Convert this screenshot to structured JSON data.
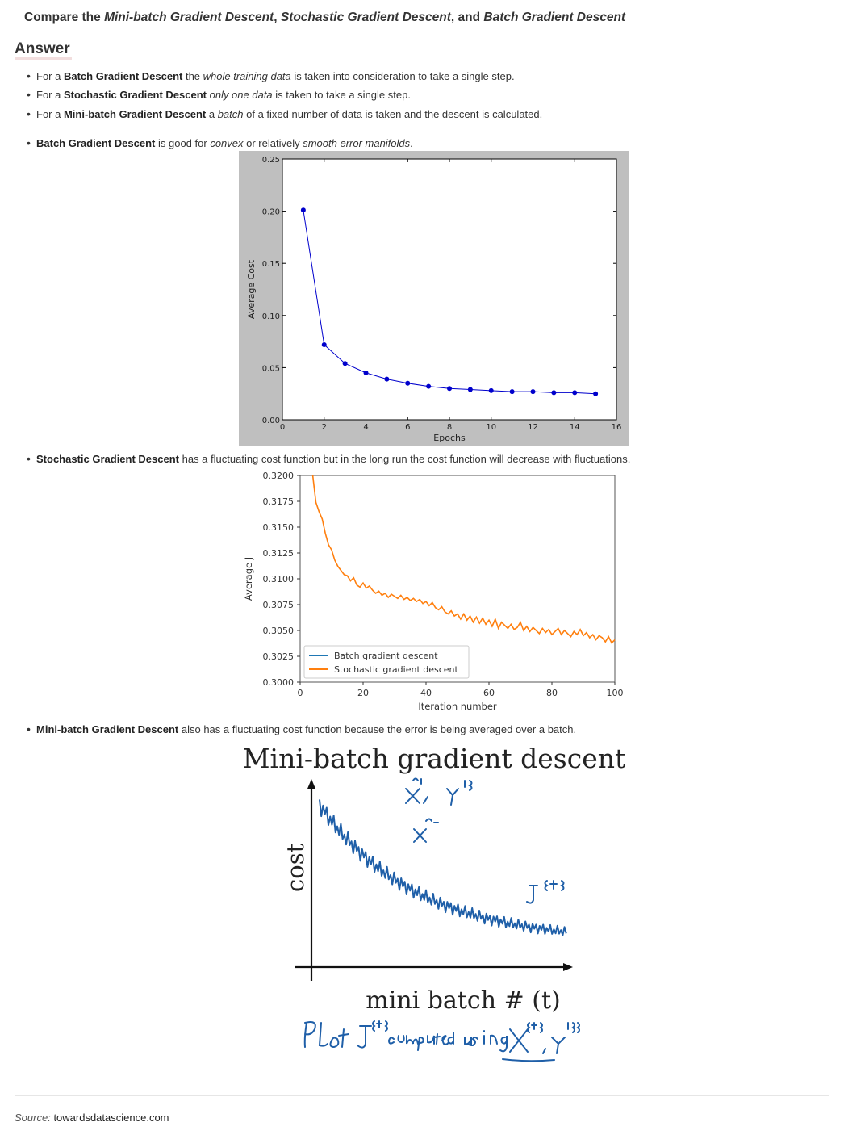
{
  "question": {
    "prefix": "Compare the ",
    "t1": "Mini-batch Gradient Descent",
    "sep1": ", ",
    "t2": "Stochastic Gradient Descent",
    "sep2": ", and ",
    "t3": "Batch Gradient Descent"
  },
  "answer_heading": "Answer",
  "bullets": [
    {
      "a": "For a ",
      "b": "Batch Gradient Descent",
      "c": " the ",
      "d": "whole training data",
      "e": " is taken into consideration to take a single step."
    },
    {
      "a": "For a ",
      "b": "Stochastic Gradient Descent",
      "c": " ",
      "d": "only one data",
      "e": " is taken to take a single step."
    },
    {
      "a": "For a ",
      "b": "Mini-batch Gradient Descent",
      "c": " a ",
      "d": "batch",
      "e": " of a fixed number of data is taken and the descent is calculated."
    }
  ],
  "bullet_batch": {
    "b": "Batch Gradient Descent",
    "c": " is good for ",
    "d": "convex",
    "e": " or relatively ",
    "f": "smooth error manifolds",
    "g": "."
  },
  "bullet_sgd": {
    "b": "Stochastic Gradient Descent",
    "c": " has a fluctuating cost function but in the long run the cost function will decrease with fluctuations."
  },
  "bullet_mb": {
    "b": "Mini-batch Gradient Descent",
    "c": " also has a fluctuating cost function because the error is being averaged over a batch."
  },
  "chart_data": [
    {
      "type": "line",
      "xlabel": "Epochs",
      "ylabel": "Average Cost",
      "xlim": [
        0,
        16
      ],
      "ylim": [
        0,
        0.25
      ],
      "xticks": [
        "0",
        "2",
        "4",
        "6",
        "8",
        "10",
        "12",
        "14",
        "16"
      ],
      "yticks": [
        "0.00",
        "0.05",
        "0.10",
        "0.15",
        "0.20",
        "0.25"
      ],
      "series": [
        {
          "x": [
            1,
            2,
            3,
            4,
            5,
            6,
            7,
            8,
            9,
            10,
            11,
            12,
            13,
            14,
            15
          ],
          "y": [
            0.201,
            0.072,
            0.054,
            0.045,
            0.039,
            0.035,
            0.032,
            0.03,
            0.029,
            0.028,
            0.027,
            0.027,
            0.026,
            0.026,
            0.025
          ],
          "color": "#0000cc"
        }
      ],
      "background": "#bfbfbf"
    },
    {
      "type": "line",
      "xlabel": "Iteration number",
      "ylabel": "Average J",
      "xlim": [
        0,
        100
      ],
      "ylim": [
        0.3,
        0.32
      ],
      "xticks": [
        "0",
        "20",
        "40",
        "60",
        "80",
        "100"
      ],
      "yticks": [
        "0.3000",
        "0.3025",
        "0.3050",
        "0.3075",
        "0.3100",
        "0.3125",
        "0.3150",
        "0.3175",
        "0.3200"
      ],
      "legend": {
        "position": "lower-left",
        "entries": [
          {
            "name": "Batch gradient descent",
            "color": "#1f77b4"
          },
          {
            "name": "Stochastic gradient descent",
            "color": "#ff7f0e"
          }
        ]
      },
      "series": [
        {
          "name": "Stochastic gradient descent",
          "color": "#ff7f0e",
          "x": [
            4,
            5,
            6,
            7,
            8,
            9,
            10,
            11,
            12,
            13,
            14,
            15,
            16,
            17,
            18,
            19,
            20,
            21,
            22,
            23,
            24,
            25,
            26,
            27,
            28,
            29,
            30,
            31,
            32,
            33,
            34,
            35,
            36,
            37,
            38,
            39,
            40,
            41,
            42,
            43,
            44,
            45,
            46,
            47,
            48,
            49,
            50,
            51,
            52,
            53,
            54,
            55,
            56,
            57,
            58,
            59,
            60,
            61,
            62,
            63,
            64,
            65,
            66,
            67,
            68,
            69,
            70,
            71,
            72,
            73,
            74,
            75,
            76,
            77,
            78,
            79,
            80,
            81,
            82,
            83,
            84,
            85,
            86,
            87,
            88,
            89,
            90,
            91,
            92,
            93,
            94,
            95,
            96,
            97,
            98,
            99,
            100
          ],
          "y": [
            0.32,
            0.3174,
            0.3165,
            0.3158,
            0.3144,
            0.3133,
            0.3128,
            0.3118,
            0.3112,
            0.3108,
            0.3104,
            0.3103,
            0.3098,
            0.3101,
            0.3094,
            0.3092,
            0.3096,
            0.3091,
            0.3093,
            0.3089,
            0.3086,
            0.3088,
            0.3084,
            0.3086,
            0.3082,
            0.3085,
            0.3083,
            0.3081,
            0.3084,
            0.308,
            0.3082,
            0.3079,
            0.3081,
            0.3078,
            0.308,
            0.3076,
            0.3078,
            0.3074,
            0.3077,
            0.3072,
            0.307,
            0.3073,
            0.3068,
            0.3066,
            0.3069,
            0.3064,
            0.3066,
            0.3061,
            0.3066,
            0.306,
            0.3064,
            0.3058,
            0.3063,
            0.3057,
            0.3062,
            0.3056,
            0.306,
            0.3054,
            0.3061,
            0.3052,
            0.3058,
            0.3055,
            0.3052,
            0.3056,
            0.3051,
            0.3053,
            0.3058,
            0.305,
            0.3054,
            0.3049,
            0.3053,
            0.305,
            0.3047,
            0.3052,
            0.3048,
            0.3051,
            0.3046,
            0.3049,
            0.3052,
            0.3046,
            0.305,
            0.3047,
            0.3044,
            0.3049,
            0.3046,
            0.3051,
            0.3045,
            0.3048,
            0.3043,
            0.3046,
            0.3041,
            0.3045,
            0.3043,
            0.3039,
            0.3044,
            0.3038,
            0.3041
          ]
        }
      ]
    }
  ],
  "minibatch": {
    "title": "Mini-batch gradient descent",
    "ylabel": "cost",
    "xlabel": "mini batch # (t)"
  },
  "source": {
    "label": "Source:",
    "value": "towardsdatascience.com"
  },
  "colors": {
    "text": "#333333",
    "batch_line": "#0000cc",
    "sgd_line": "#ff7f0e",
    "handwriting": "#1f5fa8"
  }
}
